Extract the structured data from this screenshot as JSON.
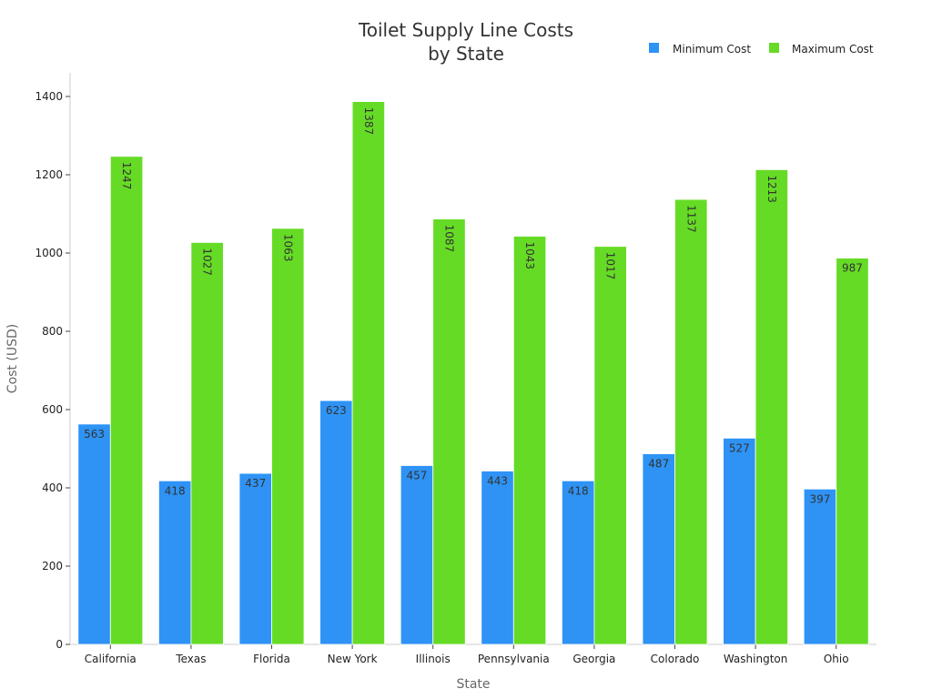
{
  "chart_data": {
    "type": "bar",
    "title": [
      "Toilet Supply Line Costs",
      "by State"
    ],
    "xlabel": "State",
    "ylabel": "Cost (USD)",
    "ylim": [
      0,
      1400
    ],
    "yticks": [
      0,
      200,
      400,
      600,
      800,
      1000,
      1200,
      1400
    ],
    "grid": false,
    "legend_position": "top-right",
    "categories": [
      "California",
      "Texas",
      "Florida",
      "New York",
      "Illinois",
      "Pennsylvania",
      "Georgia",
      "Colorado",
      "Washington",
      "Ohio"
    ],
    "series": [
      {
        "name": "Minimum Cost",
        "color": "#2e93f5",
        "values": [
          563,
          418,
          437,
          623,
          457,
          443,
          418,
          487,
          527,
          397
        ]
      },
      {
        "name": "Maximum Cost",
        "color": "#66db26",
        "values": [
          1247,
          1027,
          1063,
          1387,
          1087,
          1043,
          1017,
          1137,
          1213,
          987
        ]
      }
    ]
  }
}
